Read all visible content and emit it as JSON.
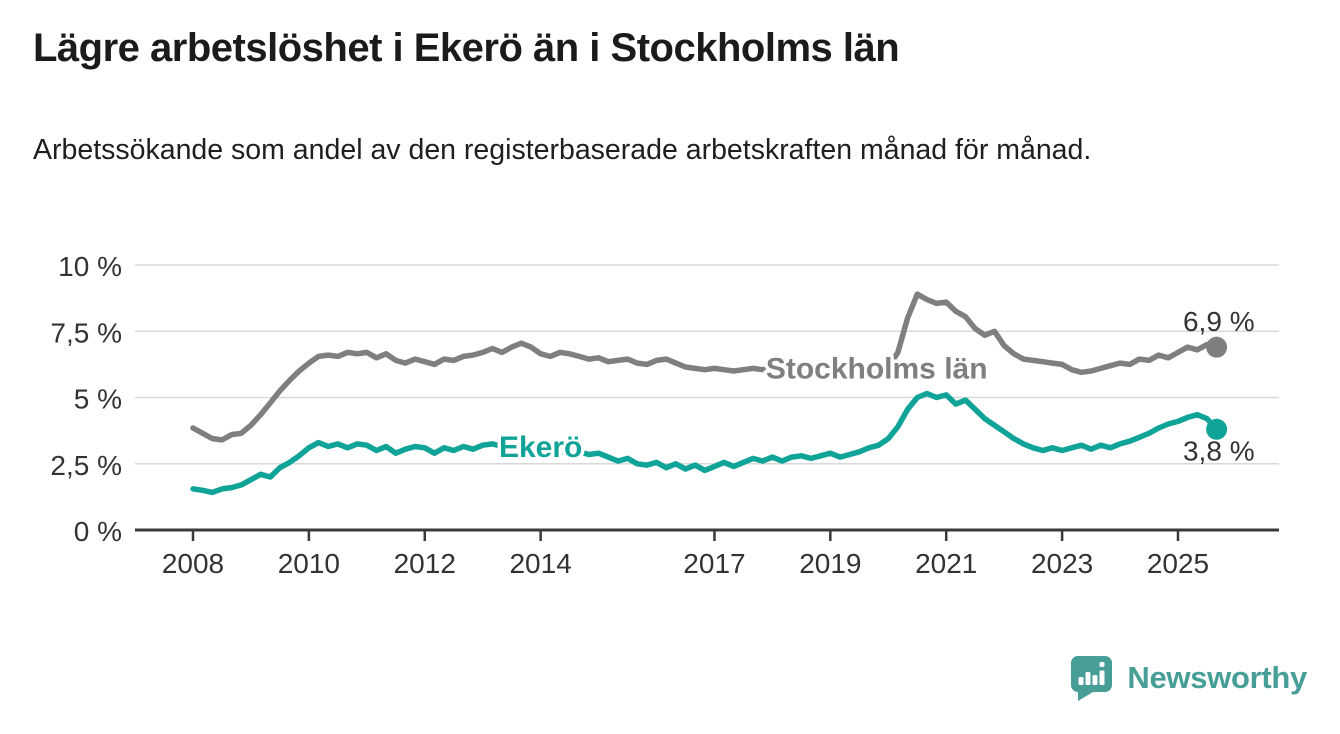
{
  "header": {
    "title": "Lägre arbetslöshet i Ekerö än i Stockholms län",
    "subtitle": "Arbetssökande som andel av den registerbaserade arbetskraften månad för månad."
  },
  "footer": {
    "brand": "Newsworthy"
  },
  "colors": {
    "series_gray": "#7f7f7f",
    "series_teal": "#10a398",
    "logo_teal": "#469e96",
    "grid": "#d9d9d9",
    "axis": "#3a3a3a",
    "text_dark": "#333333"
  },
  "chart_data": {
    "type": "line",
    "unit": "%",
    "x_start": 2008,
    "x_step_years": 0.166667,
    "xlim": [
      2007,
      2026.7
    ],
    "ylim": [
      0,
      10
    ],
    "grid": "horizontal",
    "legend_position": "inline-labels",
    "x_tick_years": [
      2008,
      2010,
      2012,
      2014,
      2017,
      2019,
      2021,
      2023,
      2025
    ],
    "x_tick_labels": [
      "2008",
      "2010",
      "2012",
      "2014",
      "2017",
      "2019",
      "2021",
      "2023",
      "2025"
    ],
    "y_ticks": [
      {
        "value": 0,
        "label": "0 %"
      },
      {
        "value": 2.5,
        "label": "2,5 %"
      },
      {
        "value": 5,
        "label": "5 %"
      },
      {
        "value": 7.5,
        "label": "7,5 %"
      },
      {
        "value": 10,
        "label": "10 %"
      }
    ],
    "series": [
      {
        "name": "Stockholms län",
        "color": "#7f7f7f",
        "end_label": "6,9 %",
        "end_value": 6.9,
        "label_anchor": {
          "year": 2019.8,
          "value": 6.1
        },
        "values": [
          3.85,
          3.65,
          3.45,
          3.4,
          3.6,
          3.65,
          3.95,
          4.35,
          4.8,
          5.25,
          5.65,
          6.0,
          6.3,
          6.55,
          6.6,
          6.55,
          6.7,
          6.65,
          6.7,
          6.5,
          6.65,
          6.4,
          6.3,
          6.45,
          6.35,
          6.25,
          6.45,
          6.4,
          6.55,
          6.6,
          6.7,
          6.85,
          6.7,
          6.9,
          7.05,
          6.9,
          6.65,
          6.55,
          6.7,
          6.65,
          6.55,
          6.45,
          6.5,
          6.35,
          6.4,
          6.45,
          6.3,
          6.25,
          6.4,
          6.45,
          6.3,
          6.15,
          6.1,
          6.05,
          6.1,
          6.05,
          6.0,
          6.05,
          6.1,
          6.05,
          6.1,
          6.0,
          5.95,
          5.85,
          5.95,
          5.9,
          5.9,
          5.95,
          5.85,
          5.95,
          5.9,
          6.0,
          6.15,
          6.7,
          8.0,
          8.9,
          8.7,
          8.55,
          8.6,
          8.25,
          8.05,
          7.6,
          7.35,
          7.5,
          6.95,
          6.65,
          6.45,
          6.4,
          6.35,
          6.3,
          6.25,
          6.05,
          5.95,
          6.0,
          6.1,
          6.2,
          6.3,
          6.25,
          6.45,
          6.4,
          6.6,
          6.5,
          6.7,
          6.9,
          6.8,
          7.0,
          6.9
        ]
      },
      {
        "name": "Ekerö",
        "color": "#10a398",
        "end_label": "3,8 %",
        "end_value": 3.8,
        "label_anchor": {
          "year": 2014.0,
          "value": 3.13
        },
        "values": [
          1.55,
          1.5,
          1.42,
          1.55,
          1.6,
          1.7,
          1.9,
          2.1,
          2.0,
          2.35,
          2.55,
          2.8,
          3.1,
          3.3,
          3.15,
          3.25,
          3.1,
          3.25,
          3.2,
          3.0,
          3.15,
          2.9,
          3.05,
          3.15,
          3.1,
          2.9,
          3.1,
          3.0,
          3.15,
          3.05,
          3.2,
          3.25,
          3.15,
          3.25,
          3.1,
          3.2,
          3.1,
          3.0,
          2.95,
          2.9,
          2.95,
          2.85,
          2.9,
          2.75,
          2.6,
          2.7,
          2.5,
          2.45,
          2.55,
          2.35,
          2.5,
          2.3,
          2.45,
          2.25,
          2.4,
          2.55,
          2.4,
          2.55,
          2.7,
          2.6,
          2.75,
          2.6,
          2.75,
          2.8,
          2.7,
          2.8,
          2.9,
          2.75,
          2.85,
          2.95,
          3.1,
          3.2,
          3.45,
          3.9,
          4.55,
          5.0,
          5.15,
          5.0,
          5.1,
          4.75,
          4.9,
          4.55,
          4.2,
          3.95,
          3.7,
          3.45,
          3.25,
          3.1,
          3.0,
          3.1,
          3.0,
          3.1,
          3.2,
          3.05,
          3.2,
          3.1,
          3.25,
          3.35,
          3.5,
          3.65,
          3.85,
          4.0,
          4.1,
          4.25,
          4.35,
          4.2,
          3.8
        ]
      }
    ]
  }
}
